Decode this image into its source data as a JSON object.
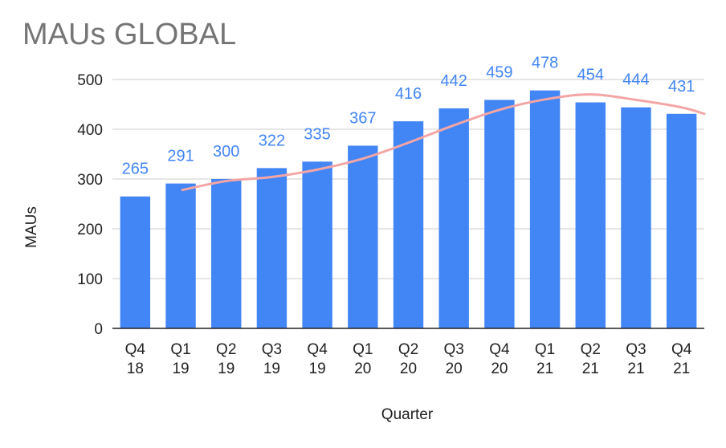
{
  "chart_data": {
    "type": "bar",
    "title": "MAUs GLOBAL",
    "xlabel": "Quarter",
    "ylabel": "MAUs",
    "ylim": [
      0,
      500
    ],
    "yticks": [
      0,
      100,
      200,
      300,
      400,
      500
    ],
    "grid": true,
    "categories": [
      [
        "Q4",
        "18"
      ],
      [
        "Q1",
        "19"
      ],
      [
        "Q2",
        "19"
      ],
      [
        "Q3",
        "19"
      ],
      [
        "Q4",
        "19"
      ],
      [
        "Q1",
        "20"
      ],
      [
        "Q2",
        "20"
      ],
      [
        "Q3",
        "20"
      ],
      [
        "Q4",
        "20"
      ],
      [
        "Q1",
        "21"
      ],
      [
        "Q2",
        "21"
      ],
      [
        "Q3",
        "21"
      ],
      [
        "Q4",
        "21"
      ]
    ],
    "values": [
      265,
      291,
      300,
      322,
      335,
      367,
      416,
      442,
      459,
      478,
      454,
      444,
      431
    ],
    "data_labels": [
      "265",
      "291",
      "300",
      "322",
      "335",
      "367",
      "416",
      "442",
      "459",
      "478",
      "454",
      "444",
      "431"
    ],
    "trendline": {
      "type": "moving-average",
      "values": [
        null,
        278,
        296,
        304,
        319,
        341,
        373,
        408,
        439,
        460,
        470,
        459,
        444
      ]
    },
    "colors": {
      "bar": "#4285f4",
      "data_label": "#4285f4",
      "trendline": "#f4a6a6",
      "grid": "#cccccc",
      "axis": "#222222",
      "title": "#757575"
    }
  }
}
